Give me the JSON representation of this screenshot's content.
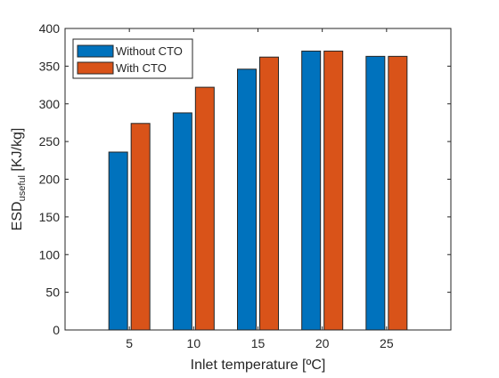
{
  "chart_data": {
    "type": "bar",
    "categories": [
      "5",
      "10",
      "15",
      "20",
      "25"
    ],
    "series": [
      {
        "name": "Without CTO",
        "color": "#0072BD",
        "values": [
          236,
          288,
          346,
          370,
          363
        ]
      },
      {
        "name": "With CTO",
        "color": "#D95319",
        "values": [
          274,
          322,
          362,
          370,
          363
        ]
      }
    ],
    "xlabel": "Inlet temperature [ºC]",
    "ylabel": {
      "main": "ESD",
      "subscript": "useful",
      "unit": " [KJ/kg]"
    },
    "ylim": [
      0,
      400
    ],
    "yticks": [
      0,
      50,
      100,
      150,
      200,
      250,
      300,
      350,
      400
    ],
    "grid": false,
    "legend_position": "top-left"
  }
}
